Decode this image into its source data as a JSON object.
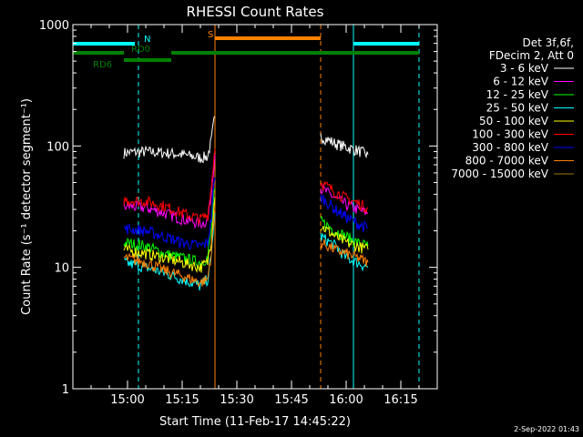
{
  "chart_data": {
    "type": "line",
    "title": "RHESSI Count Rates",
    "xlabel": "Start Time (11-Feb-17 14:45:22)",
    "ylabel": "Count Rate (s⁻¹ detector segment⁻¹)",
    "yscale": "log",
    "ylim": [
      1,
      1000
    ],
    "xlim": [
      "14:45",
      "16:25"
    ],
    "x_ticks": [
      "15:00",
      "15:15",
      "15:30",
      "15:45",
      "16:00",
      "16:15"
    ],
    "y_ticks": [
      "1",
      "10",
      "100",
      "1000"
    ],
    "timestamp": "2-Sep-2022 01:43",
    "legend": {
      "placement": "right",
      "header_line1": "Det 3f,6f,",
      "header_line2": "FDecim 2, Att 0"
    },
    "colors": {
      "axis": "#ffffff",
      "N": "#00ffff",
      "RD": "#008000",
      "S": "#ff8000"
    },
    "annotations": [
      {
        "label": "N",
        "type": "night",
        "color": "#00ffff",
        "intervals": [
          [
            "14:45",
            "15:02"
          ],
          [
            "16:02",
            "16:20"
          ]
        ]
      },
      {
        "label": "RD0",
        "type": "radiation",
        "color": "#008000",
        "intervals": [
          [
            "14:45",
            "14:59"
          ],
          [
            "15:12",
            "16:20"
          ]
        ]
      },
      {
        "label": "RD6",
        "type": "radiation",
        "color": "#008000",
        "intervals": [
          [
            "14:59",
            "15:12"
          ]
        ]
      },
      {
        "label": "S",
        "type": "saa",
        "color": "#ff8000",
        "intervals": [
          [
            "15:24",
            "15:53"
          ]
        ]
      }
    ],
    "markers": [
      {
        "time": "14:45",
        "style": "solid",
        "color": "#00ffff"
      },
      {
        "time": "15:03",
        "style": "dashed",
        "color": "#00ffff"
      },
      {
        "time": "15:24",
        "style": "solid",
        "color": "#ff8000"
      },
      {
        "time": "15:53",
        "style": "dashed",
        "color": "#ff8000"
      },
      {
        "time": "16:02",
        "style": "solid",
        "color": "#00ffff"
      },
      {
        "time": "16:20",
        "style": "dashed",
        "color": "#00ffff"
      }
    ],
    "series": [
      {
        "name": "3 - 6 keV",
        "color": "#ffffff",
        "segments": [
          {
            "x": [
              "14:59",
              "15:05",
              "15:10",
              "15:15",
              "15:20",
              "15:22",
              "15:23",
              "15:24"
            ],
            "y": [
              88,
              90,
              88,
              85,
              80,
              82,
              110,
              175
            ]
          },
          {
            "x": [
              "15:53",
              "15:57",
              "16:00",
              "16:03",
              "16:06"
            ],
            "y": [
              120,
              105,
              98,
              92,
              85
            ]
          }
        ]
      },
      {
        "name": "6 - 12 keV",
        "color": "#ff00ff",
        "segments": [
          {
            "x": [
              "14:59",
              "15:05",
              "15:10",
              "15:15",
              "15:20",
              "15:22",
              "15:23",
              "15:24"
            ],
            "y": [
              32,
              31,
              28,
              25,
              23,
              24,
              40,
              85
            ]
          },
          {
            "x": [
              "15:53",
              "15:57",
              "16:00",
              "16:03",
              "16:06"
            ],
            "y": [
              45,
              37,
              33,
              30,
              28
            ]
          }
        ]
      },
      {
        "name": "12 - 25 keV",
        "color": "#00ff00",
        "segments": [
          {
            "x": [
              "14:59",
              "15:05",
              "15:10",
              "15:15",
              "15:20",
              "15:22",
              "15:23",
              "15:24"
            ],
            "y": [
              16,
              15,
              13,
              12,
              11,
              12,
              20,
              45
            ]
          },
          {
            "x": [
              "15:53",
              "15:57",
              "16:00",
              "16:03",
              "16:06"
            ],
            "y": [
              24,
              20,
              18,
              16,
              15
            ]
          }
        ]
      },
      {
        "name": "25 - 50 keV",
        "color": "#00ffff",
        "segments": [
          {
            "x": [
              "14:59",
              "15:05",
              "15:10",
              "15:15",
              "15:20",
              "15:22",
              "15:23",
              "15:24"
            ],
            "y": [
              11,
              10,
              9,
              8,
              7,
              8,
              12,
              28
            ]
          },
          {
            "x": [
              "15:53",
              "15:57",
              "16:00",
              "16:03",
              "16:06"
            ],
            "y": [
              18,
              15,
              12,
              11,
              10
            ]
          }
        ]
      },
      {
        "name": "50 - 100 keV",
        "color": "#ffff00",
        "segments": [
          {
            "x": [
              "14:59",
              "15:05",
              "15:10",
              "15:15",
              "15:20",
              "15:22",
              "15:23",
              "15:24"
            ],
            "y": [
              14,
              13,
              12,
              11,
              10,
              11,
              17,
              38
            ]
          },
          {
            "x": [
              "15:53",
              "15:57",
              "16:00",
              "16:03",
              "16:06"
            ],
            "y": [
              22,
              18,
              16,
              15,
              14
            ]
          }
        ]
      },
      {
        "name": "100 - 300 keV",
        "color": "#ff0000",
        "segments": [
          {
            "x": [
              "14:59",
              "15:05",
              "15:10",
              "15:15",
              "15:20",
              "15:22",
              "15:23",
              "15:24"
            ],
            "y": [
              36,
              35,
              32,
              28,
              25,
              27,
              45,
              95
            ]
          },
          {
            "x": [
              "15:53",
              "15:57",
              "16:00",
              "16:03",
              "16:06"
            ],
            "y": [
              50,
              42,
              37,
              34,
              31
            ]
          }
        ]
      },
      {
        "name": "300 - 800 keV",
        "color": "#0000ff",
        "segments": [
          {
            "x": [
              "14:59",
              "15:05",
              "15:10",
              "15:15",
              "15:20",
              "15:22",
              "15:23",
              "15:24"
            ],
            "y": [
              21,
              20,
              18,
              16,
              15,
              16,
              25,
              55
            ]
          },
          {
            "x": [
              "15:53",
              "15:57",
              "16:00",
              "16:03",
              "16:06"
            ],
            "y": [
              38,
              30,
              26,
              23,
              21
            ]
          }
        ]
      },
      {
        "name": "800 - 7000 keV",
        "color": "#ff8000",
        "segments": [
          {
            "x": [
              "14:59",
              "15:05",
              "15:10",
              "15:15",
              "15:20",
              "15:22",
              "15:23",
              "15:24"
            ],
            "y": [
              12,
              11,
              9.5,
              8.5,
              7.5,
              8,
              13,
              30
            ]
          },
          {
            "x": [
              "15:53",
              "15:57",
              "16:00",
              "16:03",
              "16:06"
            ],
            "y": [
              16,
              14,
              13,
              12,
              11
            ]
          }
        ]
      },
      {
        "name": "7000 - 15000 keV",
        "color": "#a07800",
        "segments": []
      }
    ]
  }
}
